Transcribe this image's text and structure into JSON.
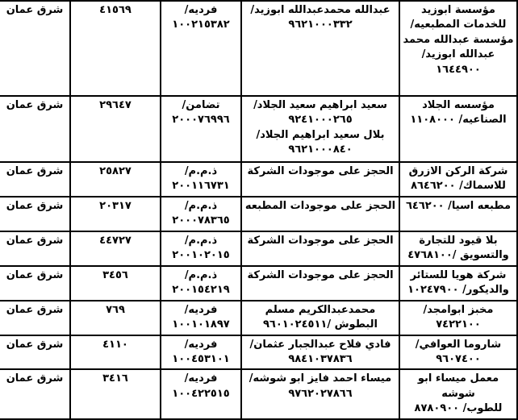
{
  "document": {
    "language": "ar",
    "direction": "rtl",
    "kind": "scanned-table-of-commercial-records"
  },
  "colors": {
    "background": "#ffffff",
    "border": "#000000",
    "text": "#000000"
  },
  "table": {
    "rows": [
      {
        "establishment": "مؤسسة ابوزيد للخدمات المطبعيه/مؤسسة عبدالله محمد عبدالله ابوزيد/ ١٦٤٤٩٠٠",
        "person": "عبدالله محمدعبدالله ابوزيد/\n٩٦٢١٠٠٠٣٣٢",
        "type": "فرديه/\n١٠٠٢١٥٣٨٢",
        "number": "٤١٥٦٩",
        "region": "شرق عمان"
      },
      {
        "establishment": "مؤسسه الجلاد\nالصناعيه/ ١١٠٨٠٠٠",
        "person": "سعيد ابراهيم سعيد الجلاد/\n٩٢٤١٠٠٠٢٦٥\nبلال سعيد ابراهيم الجلاد/\n٩٦٢١٠٠٠٨٤٠",
        "type": "تضامن/\n٢٠٠٠٧٦٩٩٦",
        "number": "٢٩٦٤٧",
        "region": "شرق عمان"
      },
      {
        "establishment": "شركة الركن الازرق\nللاسماك/ ٨٦٤٦٢٠٠",
        "person": "الحجز على موجودات الشركة",
        "type": "ذ.م.م/\n٢٠٠١١٦٧٣١",
        "number": "٢٥٨٢٧",
        "region": "شرق عمان"
      },
      {
        "establishment": "مطبعه اسيا/ ٦٤٦٢٠٠",
        "person": "الحجز على موجودات المطبعه",
        "type": "ذ.م.م/\n٢٠٠٠٧٨٣٦٥",
        "number": "٢٠٣١٧",
        "region": "شرق عمان"
      },
      {
        "establishment": "بلا قيود للتجارة\nوالتسويق /٤٧٦٨١٠٠",
        "person": "الحجز على موجودات الشركة",
        "type": "ذ.م.م/\n٢٠٠١٠٢٠١٥",
        "number": "٤٤٧٢٧",
        "region": "شرق عمان"
      },
      {
        "establishment": "شركة هويا للستائر\nوالديكور/ ١٠٢٤٧٩٠٠",
        "person": "الحجز على موجودات الشركة",
        "type": "ذ.م.م/\n٢٠٠١٥٤٢١٩",
        "number": "٣٤٥٦",
        "region": "شرق عمان"
      },
      {
        "establishment": "مخبز ابوامجد/ ٧٤٢٢١٠٠",
        "person": "محمدعبدالكريم مسلم\nالبطوش /٩٦٠١٠٢٤٥١١",
        "type": "فرديه/\n١٠٠١٠١٨٩٧",
        "number": "٧٦٩",
        "region": "شرق عمان"
      },
      {
        "establishment": "شاروما العوافي/\n٩٦٠٧٤٠٠",
        "person": "فادي فلاح عبدالجبار عثمان/\n٩٨٤١٠٣٧٨٣٦",
        "type": "فرديه/\n١٠٠٤٥٣١٠١",
        "number": "٤١١٠",
        "region": "شرق عمان"
      },
      {
        "establishment": "معمل ميساء ابو شوشه\nللطوب/ ٨٧٨٠٩٠٠",
        "person": "ميساء احمد فايز ابو شوشه/\n٩٧٦٢٠٢٧٨٦٦",
        "type": "فرديه/\n١٠٠٤٢٢٥١٥",
        "number": "٣٤١٦",
        "region": "شرق عمان"
      }
    ]
  }
}
